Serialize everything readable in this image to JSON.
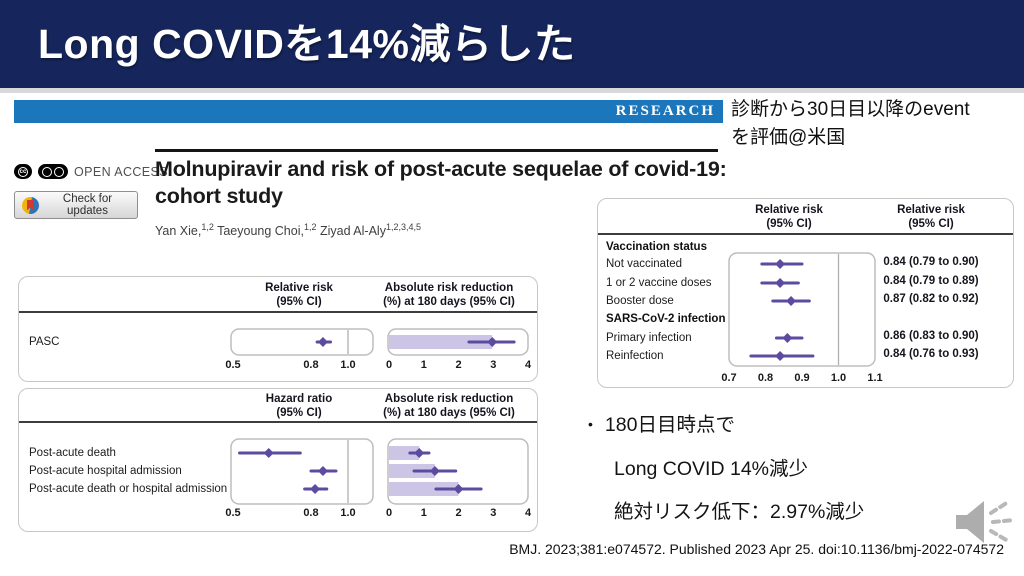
{
  "slide": {
    "title": "Long COVIDを14%減らした"
  },
  "research_banner": {
    "label": "RESEARCH"
  },
  "annotation": {
    "line1": "診断から30日目以降のevent",
    "line2": "を評価@米国"
  },
  "paper": {
    "open_access_label": "OPEN ACCESS",
    "check_updates_label": "Check for updates",
    "title": "Molnupiravir and risk of post-acute sequelae of covid-19: cohort study",
    "authors": [
      {
        "t": "Yan Xie,"
      },
      {
        "s": "1,2"
      },
      {
        "t": " Taeyoung Choi,"
      },
      {
        "s": "1,2"
      },
      {
        "t": " Ziyad Al-Aly"
      },
      {
        "s": "1,2,3,4,5"
      }
    ]
  },
  "chart_data": [
    {
      "id": "pasc",
      "type": "forest",
      "columns": [
        {
          "header": [
            "Relative risk",
            "(95% CI)"
          ]
        },
        {
          "header": [
            "Absolute risk reduction",
            "(%) at 180 days (95% CI)"
          ]
        }
      ],
      "rows": [
        {
          "label": "PASC",
          "rr": {
            "est": 0.86,
            "lo": 0.83,
            "hi": 0.9
          },
          "arr": {
            "est": 2.97,
            "lo": 2.3,
            "hi": 3.6
          }
        }
      ],
      "rr_axis": {
        "scale": "log",
        "ticks": [
          "0.5",
          "0.8",
          "1.0"
        ],
        "tick_values": [
          0.5,
          0.8,
          1.0
        ],
        "refline": 1.0
      },
      "arr_axis": {
        "scale": "linear",
        "ticks": [
          "0",
          "1",
          "2",
          "3",
          "4"
        ],
        "tick_values": [
          0,
          1,
          2,
          3,
          4
        ]
      }
    },
    {
      "id": "outcomes",
      "type": "forest",
      "columns": [
        {
          "header": [
            "Hazard ratio",
            "(95% CI)"
          ]
        },
        {
          "header": [
            "Absolute risk reduction",
            "(%) at 180 days (95% CI)"
          ]
        }
      ],
      "rows": [
        {
          "label": "Post-acute death",
          "rr": {
            "est": 0.62,
            "lo": 0.52,
            "hi": 0.75
          },
          "arr": {
            "est": 0.87,
            "lo": 0.6,
            "hi": 1.15
          }
        },
        {
          "label": "Post-acute hospital admission",
          "rr": {
            "est": 0.86,
            "lo": 0.8,
            "hi": 0.93
          },
          "arr": {
            "est": 1.32,
            "lo": 0.72,
            "hi": 1.92
          }
        },
        {
          "label": "Post-acute death or hospital admission",
          "rr": {
            "est": 0.82,
            "lo": 0.77,
            "hi": 0.88
          },
          "arr": {
            "est": 2.0,
            "lo": 1.35,
            "hi": 2.65
          }
        }
      ],
      "rr_axis": {
        "scale": "log",
        "ticks": [
          "0.5",
          "0.8",
          "1.0"
        ],
        "tick_values": [
          0.5,
          0.8,
          1.0
        ],
        "refline": 1.0
      },
      "arr_axis": {
        "scale": "linear",
        "ticks": [
          "0",
          "1",
          "2",
          "3",
          "4"
        ],
        "tick_values": [
          0,
          1,
          2,
          3,
          4
        ]
      }
    },
    {
      "id": "subgroups",
      "type": "forest",
      "columns": [
        {
          "header": [
            "Relative risk",
            "(95% CI)"
          ]
        },
        {
          "header": [
            "Relative risk",
            "(95% CI)"
          ]
        }
      ],
      "rows": [
        {
          "label": "Vaccination status",
          "group": true
        },
        {
          "label": "Not vaccinated",
          "self": {
            "est": 0.84,
            "lo": 0.79,
            "hi": 0.9
          },
          "text": "0.84 (0.79 to 0.90)"
        },
        {
          "label": "1 or 2 vaccine doses",
          "self": {
            "est": 0.84,
            "lo": 0.79,
            "hi": 0.89
          },
          "text": "0.84 (0.79 to 0.89)"
        },
        {
          "label": "Booster dose",
          "self": {
            "est": 0.87,
            "lo": 0.82,
            "hi": 0.92
          },
          "text": "0.87 (0.82 to 0.92)"
        },
        {
          "label": "SARS-CoV-2 infection",
          "group": true
        },
        {
          "label": "Primary infection",
          "self": {
            "est": 0.86,
            "lo": 0.83,
            "hi": 0.9
          },
          "text": "0.86 (0.83 to 0.90)"
        },
        {
          "label": "Reinfection",
          "self": {
            "est": 0.84,
            "lo": 0.76,
            "hi": 0.93
          },
          "text": "0.84 (0.76 to 0.93)"
        }
      ],
      "axis": {
        "scale": "linear",
        "ticks": [
          "0.7",
          "0.8",
          "0.9",
          "1.0",
          "1.1"
        ],
        "tick_values": [
          0.7,
          0.8,
          0.9,
          1.0,
          1.1
        ],
        "refline": 1.0
      }
    }
  ],
  "bullets": {
    "marker": "•",
    "line1": "180日目時点で",
    "line2": "Long COVID 14%減少",
    "line3": "絶対リスク低下：2.97%減少"
  },
  "footer": {
    "citation": "BMJ. 2023;381:e074572. Published 2023 Apr 25. doi:10.1136/bmj-2022-074572"
  },
  "colors": {
    "header_navy": "#16265c",
    "research_blue": "#1b76bc",
    "marker_purple": "#5c4b9f",
    "bar_fill": "#cdc5e6",
    "frame_gray": "#bdbdbd",
    "refline_gray": "#b0b0b0"
  }
}
